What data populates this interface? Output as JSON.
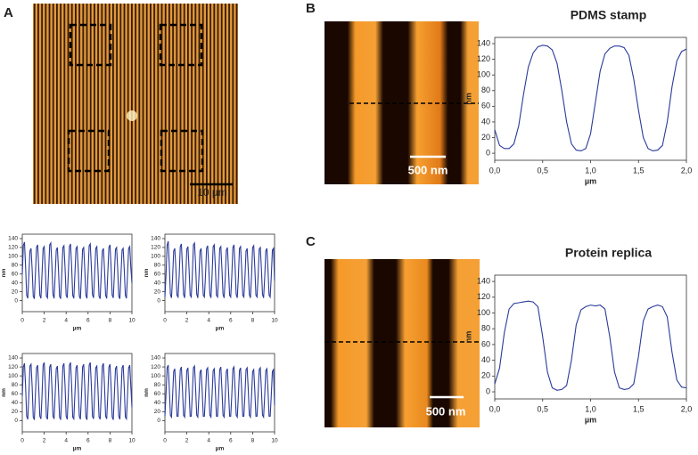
{
  "panels": [
    {
      "label": "A",
      "scale_bar": "10 µm"
    },
    {
      "label": "B",
      "scale_bar": "500 nm"
    },
    {
      "label": "C",
      "scale_bar": "500 nm"
    }
  ],
  "chart_data": [
    {
      "type": "line",
      "xlabel": "µm",
      "ylabel": "nm",
      "xlim": [
        0,
        10
      ],
      "ylim": [
        -25,
        150
      ],
      "xticks": [
        0,
        2,
        4,
        6,
        8,
        10
      ],
      "yticks": [
        0,
        20,
        40,
        60,
        80,
        100,
        120,
        140
      ],
      "color": "#2b3a9a",
      "x": [
        0,
        0.1,
        0.2,
        0.3,
        0.4,
        0.5,
        0.6,
        0.7,
        0.8,
        0.9,
        1,
        1.1,
        1.2,
        1.3,
        1.4,
        1.5,
        1.6,
        1.7,
        1.8,
        1.9,
        2,
        2.1,
        2.2,
        2.3,
        2.4,
        2.5,
        2.6,
        2.7,
        2.8,
        2.9,
        3,
        3.1,
        3.2,
        3.3,
        3.4,
        3.5,
        3.6,
        3.7,
        3.8,
        3.9,
        4,
        4.1,
        4.2,
        4.3,
        4.4,
        4.5,
        4.6,
        4.7,
        4.8,
        4.9,
        5,
        5.1,
        5.2,
        5.3,
        5.4,
        5.5,
        5.6,
        5.7,
        5.8,
        5.9,
        6,
        6.1,
        6.2,
        6.3,
        6.4,
        6.5,
        6.6,
        6.7,
        6.8,
        6.9,
        7,
        7.1,
        7.2,
        7.3,
        7.4,
        7.5,
        7.6,
        7.7,
        7.8,
        7.9,
        8,
        8.1,
        8.2,
        8.3,
        8.4,
        8.5,
        8.6,
        8.7,
        8.8,
        8.9,
        9,
        9.1,
        9.2,
        9.3,
        9.4,
        9.5,
        9.6,
        9.7,
        9.8,
        9.9,
        10
      ],
      "values": [
        60,
        125,
        132,
        78,
        12,
        5,
        58,
        112,
        118,
        70,
        10,
        4,
        62,
        120,
        126,
        76,
        12,
        5,
        60,
        118,
        122,
        72,
        10,
        6,
        64,
        126,
        130,
        80,
        14,
        5,
        58,
        114,
        120,
        70,
        10,
        4,
        60,
        120,
        124,
        74,
        12,
        6,
        62,
        122,
        128,
        78,
        12,
        5,
        60,
        118,
        122,
        72,
        10,
        4,
        58,
        116,
        120,
        70,
        12,
        5,
        62,
        124,
        128,
        76,
        14,
        6,
        60,
        118,
        122,
        72,
        10,
        4,
        58,
        112,
        118,
        70,
        12,
        5,
        62,
        120,
        126,
        76,
        12,
        6,
        60,
        116,
        120,
        72,
        10,
        4,
        58,
        114,
        118,
        70,
        12,
        5,
        60,
        118,
        122,
        74,
        40
      ]
    },
    {
      "type": "line",
      "xlabel": "µm",
      "ylabel": "nm",
      "xlim": [
        0,
        10
      ],
      "ylim": [
        -25,
        150
      ],
      "xticks": [
        0,
        2,
        4,
        6,
        8,
        10
      ],
      "yticks": [
        0,
        20,
        40,
        60,
        80,
        100,
        120,
        140
      ],
      "color": "#2b3a9a",
      "x": [
        0,
        0.1,
        0.2,
        0.3,
        0.4,
        0.5,
        0.6,
        0.7,
        0.8,
        0.9,
        1,
        1.1,
        1.2,
        1.3,
        1.4,
        1.5,
        1.6,
        1.7,
        1.8,
        1.9,
        2,
        2.1,
        2.2,
        2.3,
        2.4,
        2.5,
        2.6,
        2.7,
        2.8,
        2.9,
        3,
        3.1,
        3.2,
        3.3,
        3.4,
        3.5,
        3.6,
        3.7,
        3.8,
        3.9,
        4,
        4.1,
        4.2,
        4.3,
        4.4,
        4.5,
        4.6,
        4.7,
        4.8,
        4.9,
        5,
        5.1,
        5.2,
        5.3,
        5.4,
        5.5,
        5.6,
        5.7,
        5.8,
        5.9,
        6,
        6.1,
        6.2,
        6.3,
        6.4,
        6.5,
        6.6,
        6.7,
        6.8,
        6.9,
        7,
        7.1,
        7.2,
        7.3,
        7.4,
        7.5,
        7.6,
        7.7,
        7.8,
        7.9,
        8,
        8.1,
        8.2,
        8.3,
        8.4,
        8.5,
        8.6,
        8.7,
        8.8,
        8.9,
        9,
        9.1,
        9.2,
        9.3,
        9.4,
        9.5,
        9.6,
        9.7,
        9.8,
        9.9,
        10
      ],
      "values": [
        8,
        58,
        125,
        134,
        80,
        14,
        6,
        52,
        112,
        118,
        72,
        12,
        8,
        56,
        122,
        128,
        76,
        14,
        6,
        54,
        116,
        122,
        72,
        12,
        8,
        58,
        126,
        130,
        80,
        15,
        6,
        52,
        112,
        118,
        70,
        12,
        8,
        56,
        118,
        124,
        74,
        14,
        6,
        56,
        122,
        126,
        76,
        12,
        8,
        54,
        118,
        122,
        72,
        14,
        6,
        52,
        114,
        120,
        70,
        12,
        8,
        56,
        120,
        126,
        76,
        14,
        6,
        54,
        118,
        122,
        72,
        12,
        8,
        52,
        112,
        118,
        70,
        14,
        6,
        56,
        120,
        124,
        74,
        12,
        8,
        54,
        116,
        120,
        72,
        14,
        6,
        52,
        112,
        118,
        70,
        12,
        8,
        54,
        114,
        118,
        45
      ]
    },
    {
      "type": "line",
      "xlabel": "µm",
      "ylabel": "nm",
      "xlim": [
        0,
        10
      ],
      "ylim": [
        -25,
        150
      ],
      "xticks": [
        0,
        2,
        4,
        6,
        8,
        10
      ],
      "yticks": [
        0,
        20,
        40,
        60,
        80,
        100,
        120,
        140
      ],
      "color": "#2b3a9a",
      "x": [
        0,
        0.1,
        0.2,
        0.3,
        0.4,
        0.5,
        0.6,
        0.7,
        0.8,
        0.9,
        1,
        1.1,
        1.2,
        1.3,
        1.4,
        1.5,
        1.6,
        1.7,
        1.8,
        1.9,
        2,
        2.1,
        2.2,
        2.3,
        2.4,
        2.5,
        2.6,
        2.7,
        2.8,
        2.9,
        3,
        3.1,
        3.2,
        3.3,
        3.4,
        3.5,
        3.6,
        3.7,
        3.8,
        3.9,
        4,
        4.1,
        4.2,
        4.3,
        4.4,
        4.5,
        4.6,
        4.7,
        4.8,
        4.9,
        5,
        5.1,
        5.2,
        5.3,
        5.4,
        5.5,
        5.6,
        5.7,
        5.8,
        5.9,
        6,
        6.1,
        6.2,
        6.3,
        6.4,
        6.5,
        6.6,
        6.7,
        6.8,
        6.9,
        7,
        7.1,
        7.2,
        7.3,
        7.4,
        7.5,
        7.6,
        7.7,
        7.8,
        7.9,
        8,
        8.1,
        8.2,
        8.3,
        8.4,
        8.5,
        8.6,
        8.7,
        8.8,
        8.9,
        9,
        9.1,
        9.2,
        9.3,
        9.4,
        9.5,
        9.6,
        9.7,
        9.8,
        9.9,
        10
      ],
      "values": [
        55,
        120,
        128,
        78,
        10,
        3,
        58,
        122,
        126,
        76,
        8,
        2,
        60,
        118,
        124,
        74,
        10,
        4,
        56,
        124,
        130,
        80,
        8,
        3,
        58,
        120,
        126,
        76,
        10,
        4,
        60,
        116,
        122,
        72,
        8,
        2,
        56,
        122,
        128,
        78,
        10,
        3,
        58,
        124,
        130,
        80,
        8,
        4,
        60,
        118,
        124,
        74,
        10,
        3,
        56,
        120,
        126,
        76,
        8,
        2,
        58,
        124,
        130,
        78,
        10,
        4,
        60,
        118,
        122,
        72,
        8,
        3,
        56,
        122,
        128,
        78,
        10,
        4,
        58,
        120,
        126,
        76,
        8,
        2,
        60,
        116,
        122,
        72,
        10,
        3,
        56,
        118,
        124,
        74,
        8,
        4,
        58,
        118,
        124,
        76,
        30
      ]
    },
    {
      "type": "line",
      "xlabel": "µm",
      "ylabel": "nm",
      "xlim": [
        0,
        10
      ],
      "ylim": [
        -25,
        150
      ],
      "xticks": [
        0,
        2,
        4,
        6,
        8,
        10
      ],
      "yticks": [
        0,
        20,
        40,
        60,
        80,
        100,
        120,
        140
      ],
      "color": "#2b3a9a",
      "x": [
        0,
        0.1,
        0.2,
        0.3,
        0.4,
        0.5,
        0.6,
        0.7,
        0.8,
        0.9,
        1,
        1.1,
        1.2,
        1.3,
        1.4,
        1.5,
        1.6,
        1.7,
        1.8,
        1.9,
        2,
        2.1,
        2.2,
        2.3,
        2.4,
        2.5,
        2.6,
        2.7,
        2.8,
        2.9,
        3,
        3.1,
        3.2,
        3.3,
        3.4,
        3.5,
        3.6,
        3.7,
        3.8,
        3.9,
        4,
        4.1,
        4.2,
        4.3,
        4.4,
        4.5,
        4.6,
        4.7,
        4.8,
        4.9,
        5,
        5.1,
        5.2,
        5.3,
        5.4,
        5.5,
        5.6,
        5.7,
        5.8,
        5.9,
        6,
        6.1,
        6.2,
        6.3,
        6.4,
        6.5,
        6.6,
        6.7,
        6.8,
        6.9,
        7,
        7.1,
        7.2,
        7.3,
        7.4,
        7.5,
        7.6,
        7.7,
        7.8,
        7.9,
        8,
        8.1,
        8.2,
        8.3,
        8.4,
        8.5,
        8.6,
        8.7,
        8.8,
        8.9,
        9,
        9.1,
        9.2,
        9.3,
        9.4,
        9.5,
        9.6,
        9.7,
        9.8,
        9.9,
        10
      ],
      "values": [
        10,
        60,
        118,
        124,
        72,
        12,
        8,
        55,
        110,
        116,
        68,
        10,
        10,
        58,
        114,
        120,
        70,
        12,
        8,
        56,
        112,
        118,
        68,
        10,
        10,
        60,
        118,
        122,
        72,
        12,
        8,
        54,
        108,
        114,
        66,
        10,
        10,
        58,
        114,
        118,
        70,
        12,
        8,
        56,
        112,
        116,
        68,
        10,
        10,
        58,
        114,
        120,
        70,
        12,
        8,
        54,
        110,
        116,
        66,
        10,
        10,
        58,
        116,
        120,
        70,
        12,
        8,
        56,
        112,
        118,
        68,
        10,
        10,
        58,
        114,
        118,
        70,
        12,
        8,
        54,
        110,
        114,
        66,
        10,
        10,
        58,
        114,
        118,
        70,
        12,
        8,
        56,
        112,
        116,
        68,
        10,
        10,
        56,
        110,
        114,
        35
      ]
    },
    {
      "type": "line",
      "title": "PDMS stamp",
      "xlabel": "µm",
      "ylabel": "nm",
      "xlim": [
        0,
        2
      ],
      "ylim": [
        -9,
        148
      ],
      "xticks": [
        {
          "value": 0,
          "label": "0,0"
        },
        {
          "value": 0.5,
          "label": "0,5"
        },
        {
          "value": 1,
          "label": "1,0"
        },
        {
          "value": 1.5,
          "label": "1,5"
        },
        {
          "value": 2,
          "label": "2,0"
        }
      ],
      "yticks": [
        0,
        20,
        40,
        60,
        80,
        100,
        120,
        140
      ],
      "color": "#2b3a9a",
      "x": [
        0,
        0.05,
        0.1,
        0.15,
        0.2,
        0.25,
        0.3,
        0.35,
        0.4,
        0.45,
        0.5,
        0.55,
        0.6,
        0.65,
        0.7,
        0.75,
        0.8,
        0.85,
        0.9,
        0.95,
        1,
        1.05,
        1.1,
        1.15,
        1.2,
        1.25,
        1.3,
        1.35,
        1.4,
        1.45,
        1.5,
        1.55,
        1.6,
        1.65,
        1.7,
        1.75,
        1.8,
        1.85,
        1.9,
        1.95,
        2
      ],
      "values": [
        30,
        10,
        6,
        6,
        12,
        35,
        75,
        110,
        128,
        136,
        138,
        137,
        132,
        115,
        80,
        40,
        12,
        4,
        3,
        6,
        25,
        65,
        105,
        127,
        134,
        137,
        137,
        135,
        125,
        95,
        55,
        20,
        6,
        3,
        4,
        10,
        40,
        85,
        118,
        130,
        133
      ]
    },
    {
      "type": "line",
      "title": "Protein replica",
      "xlabel": "µm",
      "ylabel": "nm",
      "xlim": [
        0,
        2
      ],
      "ylim": [
        -9,
        148
      ],
      "xticks": [
        {
          "value": 0,
          "label": "0,0"
        },
        {
          "value": 0.5,
          "label": "0,5"
        },
        {
          "value": 1,
          "label": "1,0"
        },
        {
          "value": 1.5,
          "label": "1,5"
        },
        {
          "value": 2,
          "label": "2,0"
        }
      ],
      "yticks": [
        0,
        20,
        40,
        60,
        80,
        100,
        120,
        140
      ],
      "color": "#2b3a9a",
      "x": [
        0,
        0.05,
        0.1,
        0.15,
        0.2,
        0.25,
        0.3,
        0.35,
        0.4,
        0.45,
        0.5,
        0.55,
        0.6,
        0.65,
        0.7,
        0.75,
        0.8,
        0.85,
        0.9,
        0.95,
        1,
        1.05,
        1.1,
        1.15,
        1.2,
        1.25,
        1.3,
        1.35,
        1.4,
        1.45,
        1.5,
        1.55,
        1.6,
        1.65,
        1.7,
        1.75,
        1.8,
        1.85,
        1.9,
        1.95,
        2
      ],
      "values": [
        10,
        30,
        75,
        105,
        112,
        113,
        114,
        115,
        114,
        108,
        70,
        25,
        5,
        2,
        3,
        8,
        40,
        85,
        104,
        108,
        110,
        109,
        110,
        105,
        70,
        25,
        5,
        3,
        4,
        10,
        45,
        90,
        105,
        108,
        110,
        108,
        95,
        50,
        15,
        6,
        5
      ]
    }
  ]
}
